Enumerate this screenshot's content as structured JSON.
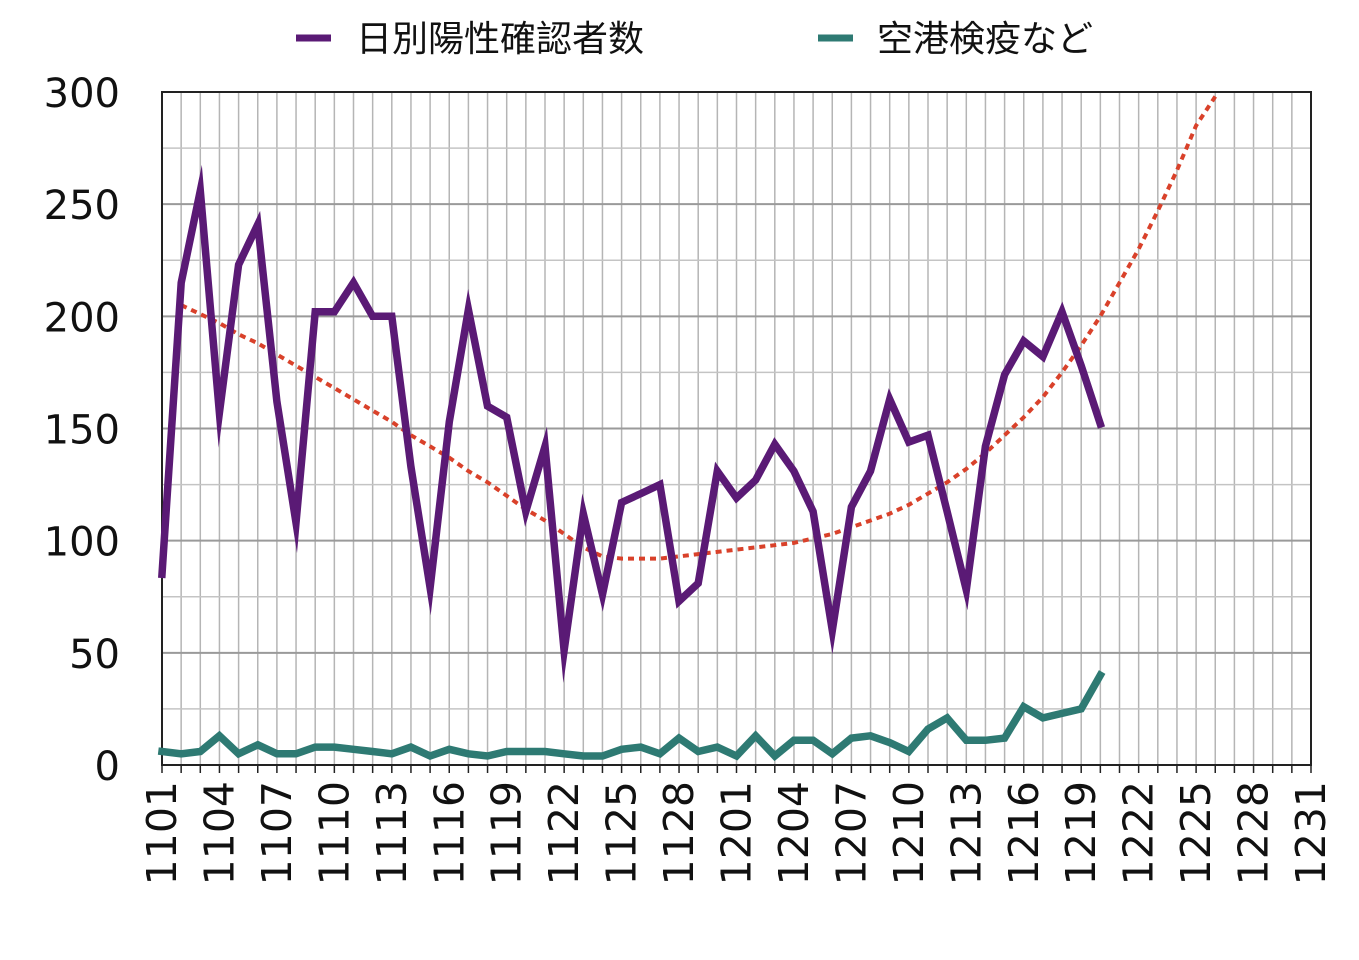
{
  "chart_data": {
    "type": "line",
    "title": "",
    "xlabel": "",
    "ylabel": "",
    "ylim": [
      0,
      300
    ],
    "yticks": [
      0,
      50,
      100,
      150,
      200,
      250,
      300
    ],
    "x_categories": [
      "1101",
      "1102",
      "1103",
      "1104",
      "1105",
      "1106",
      "1107",
      "1108",
      "1109",
      "1110",
      "1111",
      "1112",
      "1113",
      "1114",
      "1115",
      "1116",
      "1117",
      "1118",
      "1119",
      "1120",
      "1121",
      "1122",
      "1123",
      "1124",
      "1125",
      "1126",
      "1127",
      "1128",
      "1129",
      "1130",
      "1201",
      "1202",
      "1203",
      "1204",
      "1205",
      "1206",
      "1207",
      "1208",
      "1209",
      "1210",
      "1211",
      "1212",
      "1213",
      "1214",
      "1215",
      "1216",
      "1217",
      "1218",
      "1219",
      "1220",
      "1221",
      "1222",
      "1223",
      "1224",
      "1225",
      "1226",
      "1227",
      "1228",
      "1229",
      "1230",
      "1231"
    ],
    "x_tick_labels": [
      "1101",
      "1104",
      "1107",
      "1110",
      "1113",
      "1116",
      "1119",
      "1122",
      "1125",
      "1128",
      "1201",
      "1204",
      "1207",
      "1210",
      "1213",
      "1216",
      "1219",
      "1222",
      "1225",
      "1228",
      "1231"
    ],
    "grid": true,
    "legend_position": "top",
    "series": [
      {
        "name": "日別陽性確認者数",
        "color": "#5a1a75",
        "style": "solid",
        "values": [
          85,
          215,
          256,
          157,
          223,
          241,
          162,
          108,
          202,
          202,
          215,
          200,
          200,
          133,
          79,
          153,
          203,
          160,
          155,
          113,
          142,
          51,
          112,
          76,
          117,
          121,
          125,
          73,
          81,
          131,
          119,
          127,
          143,
          131,
          113,
          60,
          115,
          131,
          163,
          144,
          147,
          113,
          78,
          142,
          174,
          189,
          182,
          202,
          178,
          152
        ]
      },
      {
        "name": "空港検疫など",
        "color": "#2e7a73",
        "style": "solid",
        "values": [
          6,
          5,
          6,
          13,
          5,
          9,
          5,
          5,
          8,
          8,
          7,
          6,
          5,
          8,
          4,
          7,
          5,
          4,
          6,
          6,
          6,
          5,
          4,
          4,
          7,
          8,
          5,
          12,
          6,
          8,
          4,
          13,
          4,
          11,
          11,
          5,
          12,
          13,
          10,
          6,
          16,
          21,
          11,
          11,
          12,
          26,
          21,
          23,
          25,
          40
        ]
      },
      {
        "name": "",
        "color": "#d9412a",
        "style": "dotted",
        "x_start_index": 1,
        "values": [
          205,
          201,
          197,
          192,
          188,
          183,
          178,
          173,
          168,
          163,
          158,
          153,
          147,
          142,
          137,
          131,
          126,
          120,
          114,
          109,
          103,
          97,
          93,
          92,
          92,
          92,
          93,
          94,
          95,
          96,
          97,
          98,
          99,
          101,
          103,
          106,
          109,
          112,
          116,
          121,
          126,
          132,
          139,
          147,
          155,
          164,
          175,
          187,
          200,
          215,
          230,
          247,
          265,
          285,
          298
        ]
      }
    ]
  }
}
